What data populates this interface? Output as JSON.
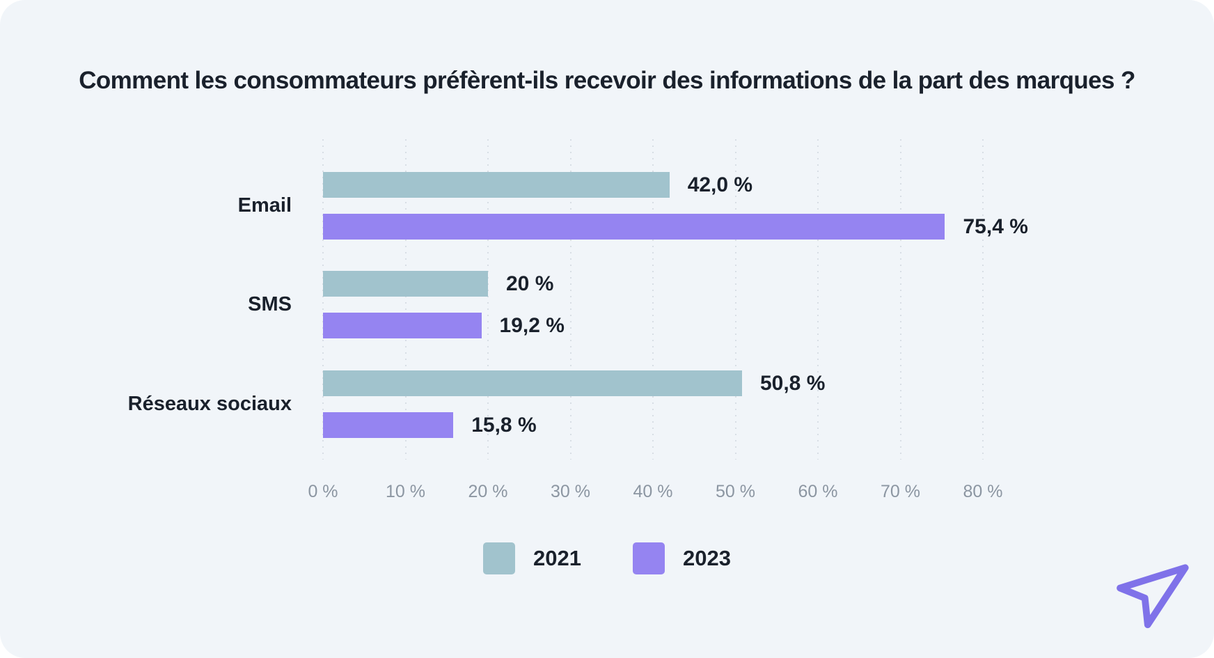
{
  "page": {
    "background": "#FFFFFF",
    "card_background": "#F1F5F9"
  },
  "chart_data": {
    "type": "bar",
    "orientation": "horizontal",
    "title": "Comment les consommateurs préfèrent-ils recevoir des informations de la part des marques ?",
    "categories": [
      "Email",
      "SMS",
      "Réseaux sociaux"
    ],
    "series": [
      {
        "name": "2021",
        "color": "#A1C3CD",
        "values": [
          42.0,
          20,
          50.8
        ],
        "value_labels": [
          "42,0 %",
          "20 %",
          "50,8 %"
        ]
      },
      {
        "name": "2023",
        "color": "#9584F1",
        "values": [
          75.4,
          19.2,
          15.8
        ],
        "value_labels": [
          "75,4 %",
          "19,2 %",
          "15,8 %"
        ]
      }
    ],
    "xlabel": "",
    "ylabel": "",
    "x_axis": {
      "min": 0,
      "max": 80,
      "step": 10,
      "tick_labels": [
        "0 %",
        "10 %",
        "20 %",
        "30 %",
        "40 %",
        "50 %",
        "60 %",
        "70 %",
        "80 %"
      ]
    },
    "grid": "vertical-dotted",
    "legend_position": "bottom-center"
  },
  "icons": {
    "send_icon": "paper-plane-outline",
    "send_icon_color": "#7F72E9"
  },
  "colors": {
    "text_dark": "#1A212C",
    "axis_text": "#8C96A2",
    "gridline": "#D8DEE5"
  }
}
